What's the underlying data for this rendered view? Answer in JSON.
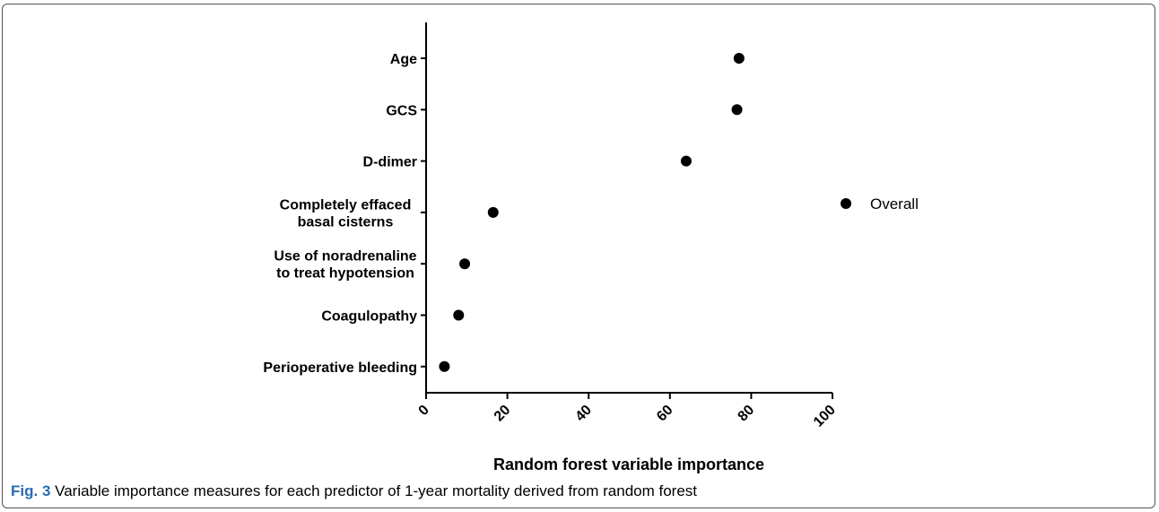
{
  "chart_data": {
    "type": "scatter",
    "categories": [
      [
        "Age"
      ],
      [
        "GCS"
      ],
      [
        "D-dimer"
      ],
      [
        "Completely effaced",
        "basal cisterns"
      ],
      [
        "Use of noradrenaline",
        "to treat hypotension"
      ],
      [
        "Coagulopathy"
      ],
      [
        "Perioperative bleeding"
      ]
    ],
    "series": [
      {
        "name": "Overall",
        "values": [
          77,
          76.5,
          64,
          16.5,
          9.5,
          8,
          4.5
        ]
      }
    ],
    "xlabel": "Random forest variable importance",
    "xticks": [
      "0",
      "20",
      "40",
      "60",
      "80",
      "100"
    ],
    "xlim": [
      0,
      100
    ],
    "legend": "right",
    "marker_color": "#000000"
  },
  "caption": {
    "label": "Fig. 3",
    "text": "Variable importance measures for each predictor of 1-year mortality derived from random forest"
  }
}
